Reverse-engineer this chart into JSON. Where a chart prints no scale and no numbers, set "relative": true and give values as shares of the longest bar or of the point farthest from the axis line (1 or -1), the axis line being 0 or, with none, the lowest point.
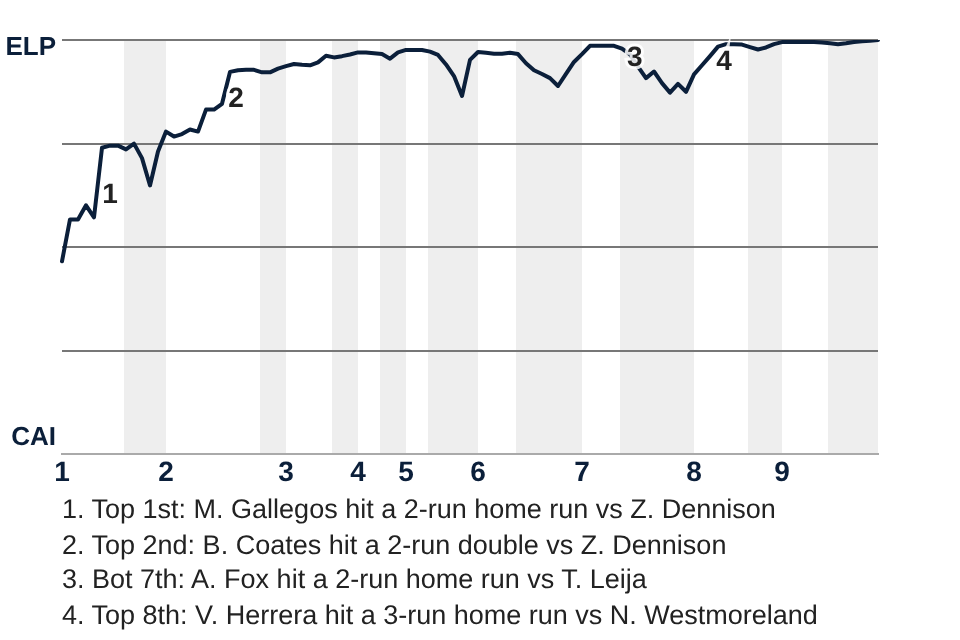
{
  "chart_data": {
    "type": "line",
    "relative": true,
    "categories": [
      "1",
      null,
      null,
      null,
      null,
      null,
      null,
      null,
      null,
      null,
      null,
      null,
      null,
      "2",
      null,
      null,
      null,
      null,
      null,
      null,
      null,
      null,
      null,
      null,
      null,
      null,
      null,
      null,
      "3",
      null,
      null,
      null,
      null,
      null,
      null,
      null,
      null,
      "4",
      null,
      null,
      null,
      null,
      null,
      "5",
      null,
      null,
      null,
      null,
      null,
      null,
      null,
      null,
      "6",
      null,
      null,
      null,
      null,
      null,
      null,
      null,
      null,
      null,
      null,
      null,
      null,
      "7",
      null,
      null,
      null,
      null,
      null,
      null,
      null,
      null,
      null,
      null,
      null,
      null,
      null,
      "8",
      null,
      null,
      null,
      null,
      null,
      null,
      null,
      null,
      null,
      null,
      "9",
      null,
      null,
      null,
      null,
      null,
      null,
      null,
      null,
      null,
      null,
      null,
      null
    ],
    "series": [
      {
        "color": "#0b1f3a",
        "values": [
          0.466,
          0.567,
          0.567,
          0.601,
          0.572,
          0.74,
          0.745,
          0.745,
          0.736,
          0.75,
          0.715,
          0.649,
          0.731,
          0.779,
          0.767,
          0.773,
          0.784,
          0.779,
          0.832,
          0.832,
          0.846,
          0.923,
          0.927,
          0.928,
          0.928,
          0.922,
          0.922,
          0.931,
          0.937,
          0.942,
          0.94,
          0.939,
          0.946,
          0.962,
          0.958,
          0.961,
          0.965,
          0.97,
          0.97,
          0.968,
          0.966,
          0.955,
          0.97,
          0.976,
          0.976,
          0.976,
          0.972,
          0.964,
          0.941,
          0.913,
          0.865,
          0.952,
          0.971,
          0.969,
          0.967,
          0.967,
          0.969,
          0.966,
          0.944,
          0.927,
          0.918,
          0.908,
          0.889,
          0.918,
          0.947,
          0.966,
          0.986,
          0.986,
          0.986,
          0.986,
          0.979,
          0.965,
          0.936,
          0.908,
          0.924,
          0.896,
          0.873,
          0.894,
          0.875,
          0.917,
          0.939,
          0.961,
          0.984,
          0.99,
          0.99,
          0.989,
          0.983,
          0.977,
          0.982,
          0.99,
          0.995,
          0.995,
          0.995,
          0.995,
          0.995,
          0.994,
          0.992,
          0.99,
          0.992,
          0.995,
          0.997,
          0.998,
          1.0
        ]
      }
    ],
    "grid": "y",
    "legend": false,
    "marker": "none",
    "line_style": "solid",
    "annotations": [
      "ELP",
      "CAI",
      "1",
      "2",
      "3",
      "4",
      "1. Top 1st: M. Gallegos hit a 2-run home run vs Z. Dennison",
      "2. Top 2nd: B. Coates hit a 2-run double vs Z. Dennison",
      "3. Bot 7th: A. Fox hit a 2-run home run vs T. Leija",
      "4. Top 8th: V. Herrera hit a 3-run home run vs N. Westmoreland"
    ]
  }
}
